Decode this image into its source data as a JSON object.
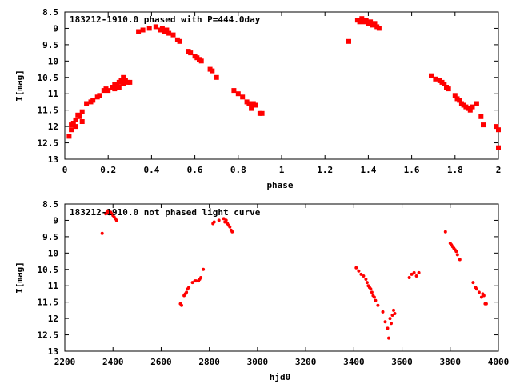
{
  "colors": {
    "data": "#ff0000",
    "axis": "#000000",
    "background": "#ffffff"
  },
  "chart_data": [
    {
      "type": "scatter",
      "title": "183212-1910.0 phased with P=444.0day",
      "xlabel": "phase",
      "ylabel": "I[mag]",
      "xlim": [
        0,
        2
      ],
      "ylim": [
        13,
        8.5
      ],
      "y_inverted": true,
      "grid": false,
      "legend": "none",
      "xticks": [
        "0",
        "0.2",
        "0.4",
        "0.6",
        "0.8",
        "1",
        "1.2",
        "1.4",
        "1.6",
        "1.8",
        "2"
      ],
      "yticks": [
        "8.5",
        "9",
        "9.5",
        "10",
        "10.5",
        "11",
        "11.5",
        "12",
        "12.5",
        "13"
      ],
      "points": [
        [
          0.02,
          12.3
        ],
        [
          0.03,
          12.1
        ],
        [
          0.03,
          11.95
        ],
        [
          0.04,
          11.9
        ],
        [
          0.05,
          12.0
        ],
        [
          0.05,
          11.8
        ],
        [
          0.06,
          11.65
        ],
        [
          0.07,
          11.7
        ],
        [
          0.08,
          11.55
        ],
        [
          0.08,
          11.85
        ],
        [
          0.1,
          11.3
        ],
        [
          0.12,
          11.25
        ],
        [
          0.13,
          11.2
        ],
        [
          0.15,
          11.1
        ],
        [
          0.16,
          11.05
        ],
        [
          0.18,
          10.9
        ],
        [
          0.19,
          10.85
        ],
        [
          0.2,
          10.9
        ],
        [
          0.22,
          10.8
        ],
        [
          0.23,
          10.7
        ],
        [
          0.23,
          10.85
        ],
        [
          0.24,
          10.75
        ],
        [
          0.25,
          10.65
        ],
        [
          0.25,
          10.8
        ],
        [
          0.26,
          10.6
        ],
        [
          0.27,
          10.5
        ],
        [
          0.27,
          10.7
        ],
        [
          0.28,
          10.6
        ],
        [
          0.29,
          10.65
        ],
        [
          0.3,
          10.65
        ],
        [
          0.34,
          9.1
        ],
        [
          0.36,
          9.05
        ],
        [
          0.39,
          9.0
        ],
        [
          0.42,
          8.95
        ],
        [
          0.44,
          9.05
        ],
        [
          0.45,
          9.0
        ],
        [
          0.46,
          9.1
        ],
        [
          0.47,
          9.05
        ],
        [
          0.48,
          9.15
        ],
        [
          0.5,
          9.2
        ],
        [
          0.52,
          9.35
        ],
        [
          0.53,
          9.4
        ],
        [
          0.57,
          9.7
        ],
        [
          0.58,
          9.75
        ],
        [
          0.6,
          9.85
        ],
        [
          0.61,
          9.9
        ],
        [
          0.62,
          9.95
        ],
        [
          0.63,
          10.0
        ],
        [
          0.67,
          10.25
        ],
        [
          0.68,
          10.3
        ],
        [
          0.7,
          10.5
        ],
        [
          0.78,
          10.9
        ],
        [
          0.8,
          11.0
        ],
        [
          0.82,
          11.1
        ],
        [
          0.84,
          11.25
        ],
        [
          0.85,
          11.3
        ],
        [
          0.86,
          11.45
        ],
        [
          0.87,
          11.3
        ],
        [
          0.88,
          11.35
        ],
        [
          0.9,
          11.6
        ],
        [
          0.91,
          11.6
        ],
        [
          1.31,
          9.4
        ],
        [
          1.35,
          8.75
        ],
        [
          1.36,
          8.8
        ],
        [
          1.37,
          8.7
        ],
        [
          1.38,
          8.8
        ],
        [
          1.39,
          8.75
        ],
        [
          1.4,
          8.85
        ],
        [
          1.41,
          8.8
        ],
        [
          1.42,
          8.9
        ],
        [
          1.43,
          8.85
        ],
        [
          1.44,
          8.95
        ],
        [
          1.45,
          9.0
        ],
        [
          1.69,
          10.45
        ],
        [
          1.71,
          10.55
        ],
        [
          1.73,
          10.6
        ],
        [
          1.74,
          10.65
        ],
        [
          1.75,
          10.7
        ],
        [
          1.76,
          10.8
        ],
        [
          1.77,
          10.85
        ],
        [
          1.8,
          11.05
        ],
        [
          1.81,
          11.15
        ],
        [
          1.82,
          11.2
        ],
        [
          1.83,
          11.3
        ],
        [
          1.84,
          11.35
        ],
        [
          1.85,
          11.4
        ],
        [
          1.86,
          11.45
        ],
        [
          1.87,
          11.5
        ],
        [
          1.88,
          11.4
        ],
        [
          1.9,
          11.3
        ],
        [
          1.92,
          11.7
        ],
        [
          1.93,
          11.95
        ],
        [
          1.99,
          12.0
        ],
        [
          2.0,
          12.1
        ],
        [
          2.0,
          12.65
        ]
      ]
    },
    {
      "type": "scatter",
      "title": "183212-1910.0 not phased light curve",
      "xlabel": "hjd0",
      "ylabel": "I[mag]",
      "xlim": [
        2200,
        4000
      ],
      "ylim": [
        13,
        8.5
      ],
      "y_inverted": true,
      "grid": false,
      "legend": "none",
      "xticks": [
        "2200",
        "2400",
        "2600",
        "2800",
        "3000",
        "3200",
        "3400",
        "3600",
        "3800",
        "4000"
      ],
      "yticks": [
        "8.5",
        "9",
        "9.5",
        "10",
        "10.5",
        "11",
        "11.5",
        "12",
        "12.5",
        "13"
      ],
      "points": [
        [
          2355,
          9.4
        ],
        [
          2370,
          8.8
        ],
        [
          2375,
          8.75
        ],
        [
          2380,
          8.7
        ],
        [
          2385,
          8.8
        ],
        [
          2390,
          8.75
        ],
        [
          2395,
          8.8
        ],
        [
          2400,
          8.85
        ],
        [
          2405,
          8.9
        ],
        [
          2410,
          8.95
        ],
        [
          2415,
          9.0
        ],
        [
          2680,
          11.55
        ],
        [
          2685,
          11.6
        ],
        [
          2695,
          11.3
        ],
        [
          2700,
          11.25
        ],
        [
          2705,
          11.2
        ],
        [
          2710,
          11.1
        ],
        [
          2715,
          11.05
        ],
        [
          2730,
          10.9
        ],
        [
          2740,
          10.85
        ],
        [
          2745,
          10.85
        ],
        [
          2755,
          10.85
        ],
        [
          2760,
          10.8
        ],
        [
          2765,
          10.75
        ],
        [
          2775,
          10.5
        ],
        [
          2815,
          9.1
        ],
        [
          2820,
          9.05
        ],
        [
          2840,
          9.0
        ],
        [
          2860,
          8.95
        ],
        [
          2865,
          9.05
        ],
        [
          2870,
          9.0
        ],
        [
          2875,
          9.1
        ],
        [
          2880,
          9.15
        ],
        [
          2885,
          9.2
        ],
        [
          2890,
          9.3
        ],
        [
          2895,
          9.35
        ],
        [
          3410,
          10.45
        ],
        [
          3420,
          10.55
        ],
        [
          3430,
          10.65
        ],
        [
          3440,
          10.7
        ],
        [
          3450,
          10.8
        ],
        [
          3455,
          10.9
        ],
        [
          3460,
          11.0
        ],
        [
          3465,
          11.05
        ],
        [
          3470,
          11.1
        ],
        [
          3475,
          11.2
        ],
        [
          3480,
          11.3
        ],
        [
          3485,
          11.35
        ],
        [
          3490,
          11.45
        ],
        [
          3500,
          11.6
        ],
        [
          3520,
          11.8
        ],
        [
          3530,
          12.1
        ],
        [
          3540,
          12.3
        ],
        [
          3545,
          12.6
        ],
        [
          3550,
          12.0
        ],
        [
          3555,
          12.15
        ],
        [
          3560,
          11.9
        ],
        [
          3565,
          11.75
        ],
        [
          3570,
          11.85
        ],
        [
          3630,
          10.75
        ],
        [
          3640,
          10.65
        ],
        [
          3650,
          10.6
        ],
        [
          3660,
          10.7
        ],
        [
          3670,
          10.6
        ],
        [
          3780,
          9.35
        ],
        [
          3800,
          9.7
        ],
        [
          3805,
          9.75
        ],
        [
          3810,
          9.8
        ],
        [
          3815,
          9.85
        ],
        [
          3820,
          9.9
        ],
        [
          3825,
          9.95
        ],
        [
          3830,
          10.05
        ],
        [
          3840,
          10.2
        ],
        [
          3895,
          10.9
        ],
        [
          3905,
          11.05
        ],
        [
          3910,
          11.1
        ],
        [
          3920,
          11.2
        ],
        [
          3930,
          11.35
        ],
        [
          3935,
          11.25
        ],
        [
          3940,
          11.3
        ],
        [
          3945,
          11.55
        ],
        [
          3950,
          11.55
        ]
      ]
    }
  ]
}
